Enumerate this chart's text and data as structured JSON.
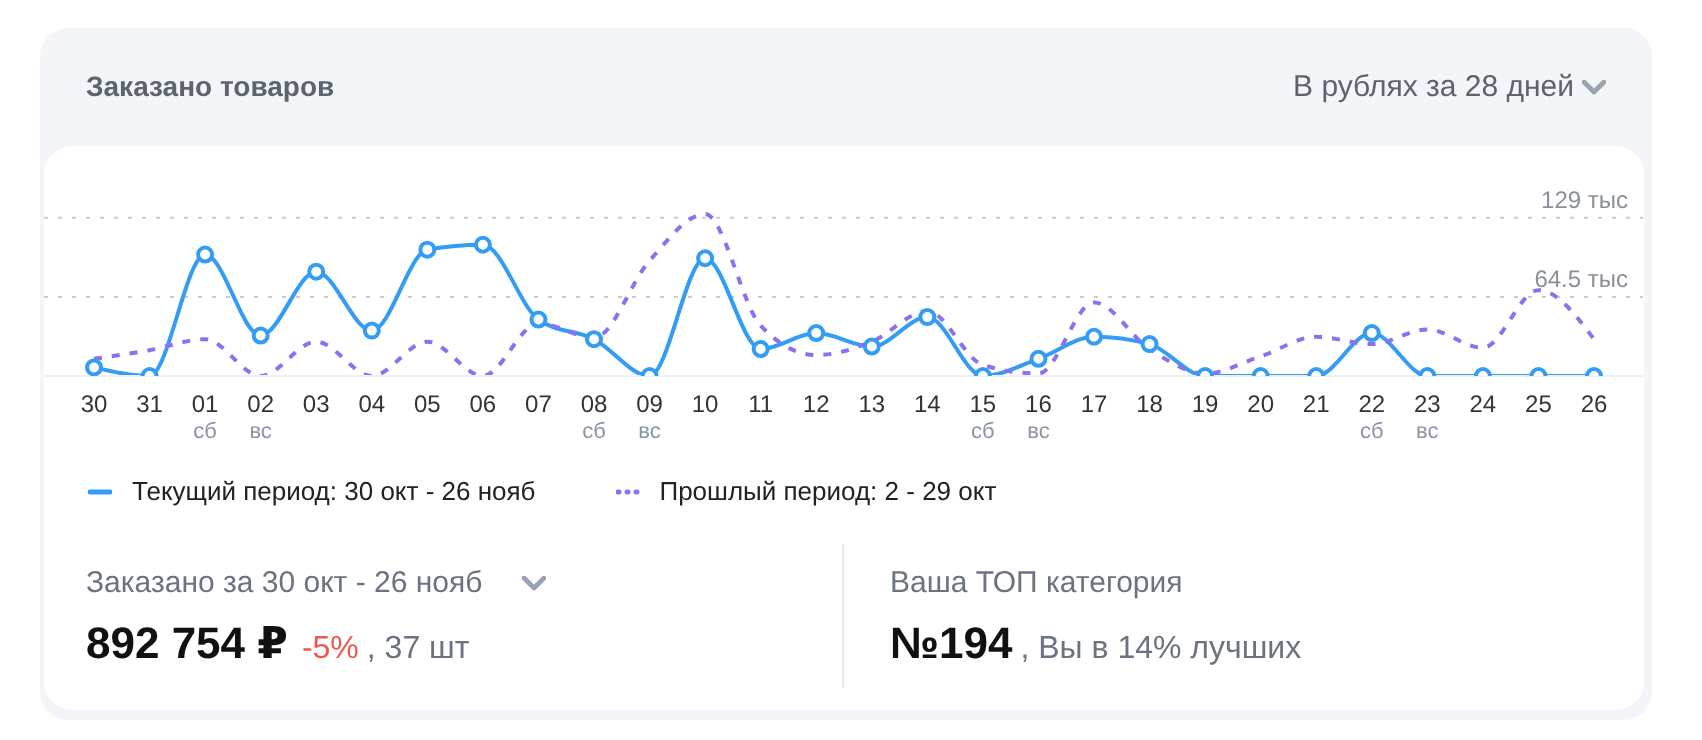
{
  "chart_data": {
    "type": "line",
    "title": "Заказано товаров",
    "subtitle": "В рублях за 28 дней",
    "categories": [
      "30",
      "31",
      "01 сб",
      "02 вс",
      "03",
      "04",
      "05",
      "06",
      "07",
      "08 сб",
      "09 вс",
      "10",
      "11",
      "12",
      "13",
      "14",
      "15 сб",
      "16 вс",
      "17",
      "18",
      "19",
      "20",
      "21",
      "22 сб",
      "23 вс",
      "24",
      "25",
      "26"
    ],
    "series": [
      {
        "name": "Текущий период: 30 окт - 26 нояб",
        "color": "#339cf5",
        "marker": "circle",
        "line_style": "solid",
        "values": [
          7,
          0,
          99,
          33,
          85,
          37,
          103,
          107,
          46,
          30,
          0,
          96,
          22,
          35,
          24,
          48,
          0,
          14,
          32,
          26,
          0,
          0,
          0,
          35,
          0,
          0,
          0,
          0
        ]
      },
      {
        "name": "Прошлый период: 2 - 29 окт",
        "color": "#8d6ff2",
        "marker": "none",
        "line_style": "dashed",
        "values": [
          14,
          21,
          30,
          0,
          28,
          0,
          28,
          0,
          43,
          31,
          94,
          132,
          41,
          17,
          28,
          53,
          9,
          2,
          60,
          22,
          2,
          16,
          32,
          26,
          38,
          23,
          70,
          30
        ]
      }
    ],
    "ylim": [
      0,
      150
    ],
    "yticks": [
      {
        "value": 64.5,
        "label": "64.5 тыс"
      },
      {
        "value": 129,
        "label": "129 тыс"
      }
    ],
    "grid": "y",
    "legend": "bottom",
    "annotations": [
      "Заказано за 30 окт - 26 нояб",
      "892 754 ₽",
      "-5%",
      ", 37 шт",
      "Ваша ТОП категория",
      "№194",
      ", Вы в 14% лучших"
    ]
  }
}
